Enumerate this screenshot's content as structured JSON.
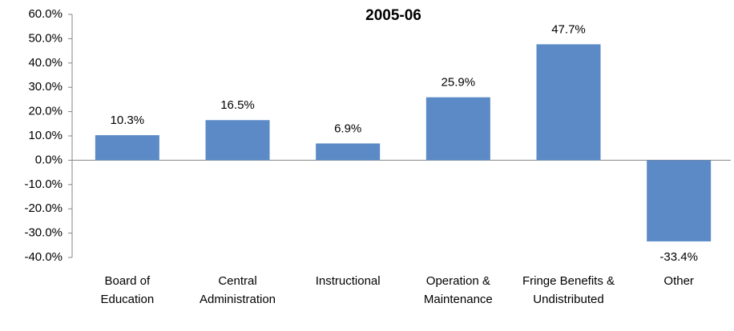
{
  "chart_data": {
    "type": "bar",
    "title": "2005-06",
    "categories": [
      "Board of Education",
      "Central Administration",
      "Instructional",
      "Operation & Maintenance",
      "Fringe Benefits & Undistributed",
      "Other"
    ],
    "values": [
      10.3,
      16.5,
      6.9,
      25.9,
      47.7,
      -33.4
    ],
    "value_labels": [
      "10.3%",
      "16.5%",
      "6.9%",
      "25.9%",
      "47.7%",
      "-33.4%"
    ],
    "color": "#5b8ac6",
    "ylim": [
      -40,
      60
    ],
    "yticks": [
      {
        "value": -40,
        "label": "-40.0%"
      },
      {
        "value": -30,
        "label": "-30.0%"
      },
      {
        "value": -20,
        "label": "-20.0%"
      },
      {
        "value": -10,
        "label": "-10.0%"
      },
      {
        "value": 0,
        "label": "0.0%"
      },
      {
        "value": 10,
        "label": "10.0%"
      },
      {
        "value": 20,
        "label": "20.0%"
      },
      {
        "value": 30,
        "label": "30.0%"
      },
      {
        "value": 40,
        "label": "40.0%"
      },
      {
        "value": 50,
        "label": "50.0%"
      },
      {
        "value": 60,
        "label": "60.0%"
      }
    ],
    "grid": false
  }
}
